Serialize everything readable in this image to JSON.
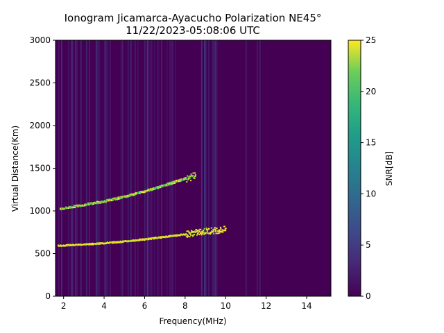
{
  "chart_data": {
    "type": "heatmap",
    "title": "Ionogram Jicamarca-Ayacucho Polarization NE45°",
    "subtitle": "11/22/2023-05:08:06 UTC",
    "xlabel": "Frequency(MHz)",
    "ylabel": "Virtual Distance(Km)",
    "xlim": [
      1.6,
      15.2
    ],
    "ylim": [
      0,
      3000
    ],
    "x_ticks": [
      2,
      4,
      6,
      8,
      10,
      12,
      14
    ],
    "y_ticks": [
      0,
      500,
      1000,
      1500,
      2000,
      2500,
      3000
    ],
    "colorbar": {
      "label": "SNR[dB]",
      "range": [
        0,
        25
      ],
      "ticks": [
        0,
        5,
        10,
        15,
        20,
        25
      ],
      "colormap": "viridis"
    },
    "traces": [
      {
        "freq_mhz": [
          1.7,
          3.0,
          4.0,
          5.0,
          6.0,
          7.0,
          8.0,
          9.0,
          10.0
        ],
        "distance_km": [
          600,
          615,
          630,
          650,
          675,
          705,
          735,
          770,
          790
        ]
      },
      {
        "freq_mhz": [
          1.8,
          3.0,
          4.0,
          5.0,
          6.0,
          7.0,
          7.5,
          8.5
        ],
        "distance_km": [
          1030,
          1080,
          1120,
          1175,
          1240,
          1310,
          1350,
          1420
        ]
      }
    ],
    "noise_bands_mhz": [
      [
        3.5,
        4.7
      ],
      [
        5.3,
        7.6
      ],
      [
        8.8,
        9.6
      ]
    ],
    "grid": false
  }
}
